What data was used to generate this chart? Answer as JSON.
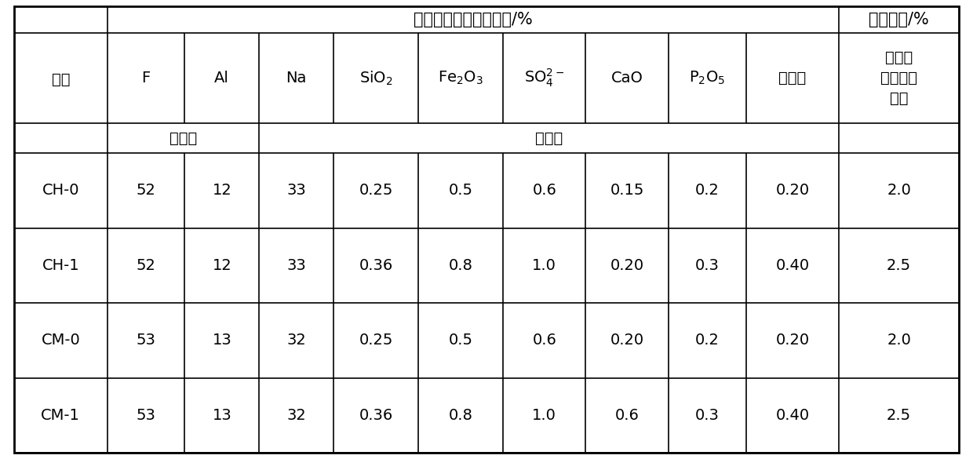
{
  "title_chem": "化学成分（质量分数）/%",
  "title_phys": "物理性能/%",
  "phys_header_lines": [
    "烧减量",
    "（质量分",
    "数）"
  ],
  "col_headers": [
    "F",
    "Al",
    "Na",
    "SiO$_2$",
    "Fe$_2$O$_3$",
    "SO$_4^{2-}$",
    "CaO",
    "P$_2$O$_5$",
    "湿存水"
  ],
  "qualifier_left": "不小于",
  "qualifier_right": "不大于",
  "brand_label": "牌号",
  "rows": [
    [
      "CH-0",
      "52",
      "12",
      "33",
      "0.25",
      "0.5",
      "0.6",
      "0.15",
      "0.2",
      "0.20",
      "2.0"
    ],
    [
      "CH-1",
      "52",
      "12",
      "33",
      "0.36",
      "0.8",
      "1.0",
      "0.20",
      "0.3",
      "0.40",
      "2.5"
    ],
    [
      "CM-0",
      "53",
      "13",
      "32",
      "0.25",
      "0.5",
      "0.6",
      "0.20",
      "0.2",
      "0.20",
      "2.0"
    ],
    [
      "CM-1",
      "53",
      "13",
      "32",
      "0.36",
      "0.8",
      "1.0",
      "0.6",
      "0.3",
      "0.40",
      "2.5"
    ]
  ],
  "font_color": "#000000",
  "line_color": "#000000",
  "bg_color": "#ffffff",
  "font_size_data": 14,
  "font_size_header": 14,
  "font_size_title": 15
}
